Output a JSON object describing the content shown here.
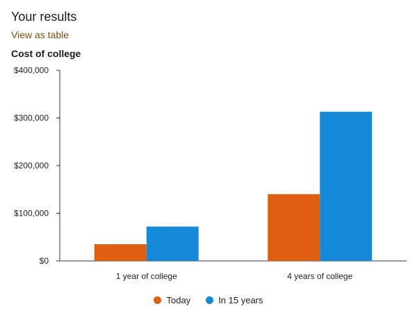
{
  "header": {
    "title": "Your results",
    "table_link": "View as table"
  },
  "chart_data": {
    "type": "bar",
    "title": "Cost of college",
    "xlabel": "",
    "ylabel": "",
    "categories": [
      "1 year of college",
      "4 years of college"
    ],
    "series": [
      {
        "name": "Today",
        "color": "#e05e10",
        "values": [
          35000,
          140000
        ]
      },
      {
        "name": "In 15 years",
        "color": "#1688d8",
        "values": [
          72000,
          313000
        ]
      }
    ],
    "ylim": [
      0,
      400000
    ],
    "yticks": [
      0,
      100000,
      200000,
      300000,
      400000
    ],
    "ytick_labels": [
      "$0",
      "$100,000",
      "$200,000",
      "$300,000",
      "$400,000"
    ],
    "grid": false,
    "legend": "bottom-center"
  }
}
